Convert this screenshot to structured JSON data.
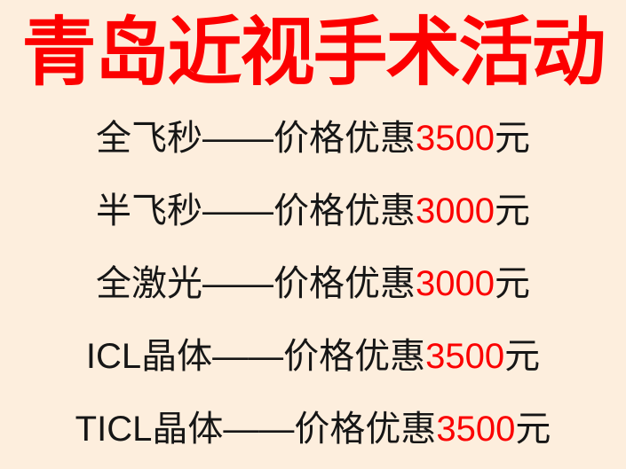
{
  "poster": {
    "title": {
      "text": "青岛近视手术活动"
    },
    "offers": [
      {
        "name": "全飞秒",
        "separator": "——",
        "promo_label": "价格优惠",
        "price": "3500",
        "unit": "元"
      },
      {
        "name": "半飞秒",
        "separator": "——",
        "promo_label": "价格优惠",
        "price": "3000",
        "unit": "元"
      },
      {
        "name": "全激光",
        "separator": "——",
        "promo_label": "价格优惠",
        "price": "3000",
        "unit": "元"
      },
      {
        "name": "ICL晶体",
        "separator": "——",
        "promo_label": "价格优惠",
        "price": "3500",
        "unit": "元"
      },
      {
        "name": "TICL晶体",
        "separator": "——",
        "promo_label": "价格优惠",
        "price": "3500",
        "unit": "元"
      }
    ],
    "colors": {
      "background": "#fdeedd",
      "title_red": "#fc0000",
      "price_red": "#fb0000",
      "body_text": "#161616"
    }
  }
}
